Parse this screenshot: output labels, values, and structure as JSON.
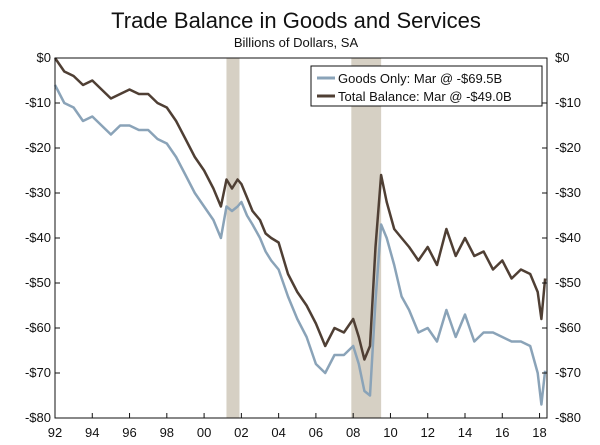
{
  "chart_data": {
    "type": "line",
    "title": "Trade Balance in Goods and Services",
    "subtitle": "Billions of Dollars, SA",
    "xlabel": "",
    "ylabel": "",
    "xlim": [
      1992,
      2018.4
    ],
    "ylim": [
      -80,
      0
    ],
    "y_ticks": [
      0,
      -10,
      -20,
      -30,
      -40,
      -50,
      -60,
      -70,
      -80
    ],
    "y_tick_labels": [
      "$0",
      "-$10",
      "-$20",
      "-$30",
      "-$40",
      "-$50",
      "-$60",
      "-$70",
      "-$80"
    ],
    "x_ticks": [
      1992,
      1994,
      1996,
      1998,
      2000,
      2002,
      2004,
      2006,
      2008,
      2010,
      2012,
      2014,
      2016,
      2018
    ],
    "x_tick_labels": [
      "92",
      "94",
      "96",
      "98",
      "00",
      "02",
      "04",
      "06",
      "08",
      "10",
      "12",
      "14",
      "16",
      "18"
    ],
    "grid": false,
    "legend_position": "top-right",
    "recessions": [
      [
        2001.2,
        2001.9
      ],
      [
        2007.9,
        2009.5
      ]
    ],
    "series": [
      {
        "name": "Goods Only: Mar @ -$69.5B",
        "color": "#8aa3b8",
        "x": [
          1992.0,
          1992.5,
          1993.0,
          1993.5,
          1994.0,
          1994.5,
          1995.0,
          1995.5,
          1996.0,
          1996.5,
          1997.0,
          1997.5,
          1998.0,
          1998.5,
          1999.0,
          1999.5,
          2000.0,
          2000.5,
          2000.9,
          2001.2,
          2001.5,
          2001.8,
          2002.0,
          2002.3,
          2002.6,
          2003.0,
          2003.3,
          2003.6,
          2004.0,
          2004.5,
          2005.0,
          2005.5,
          2006.0,
          2006.5,
          2007.0,
          2007.5,
          2008.0,
          2008.3,
          2008.6,
          2008.9,
          2009.2,
          2009.5,
          2009.8,
          2010.2,
          2010.6,
          2011.0,
          2011.5,
          2012.0,
          2012.5,
          2013.0,
          2013.5,
          2014.0,
          2014.5,
          2015.0,
          2015.5,
          2016.0,
          2016.5,
          2017.0,
          2017.5,
          2017.9,
          2018.1,
          2018.3
        ],
        "values": [
          -6,
          -10,
          -11,
          -14,
          -13,
          -15,
          -17,
          -15,
          -15,
          -16,
          -16,
          -18,
          -19,
          -22,
          -26,
          -30,
          -33,
          -36,
          -40,
          -33,
          -34,
          -33,
          -32,
          -35,
          -37,
          -40,
          -43,
          -45,
          -47,
          -53,
          -58,
          -62,
          -68,
          -70,
          -66,
          -66,
          -64,
          -68,
          -74,
          -75,
          -54,
          -37,
          -40,
          -46,
          -53,
          -56,
          -61,
          -60,
          -63,
          -56,
          -62,
          -57,
          -63,
          -61,
          -61,
          -62,
          -63,
          -63,
          -64,
          -70,
          -77,
          -69.5
        ]
      },
      {
        "name": "Total Balance: Mar @ -$49.0B",
        "color": "#4f3f34",
        "x": [
          1992.0,
          1992.5,
          1993.0,
          1993.5,
          1994.0,
          1994.5,
          1995.0,
          1995.5,
          1996.0,
          1996.5,
          1997.0,
          1997.5,
          1998.0,
          1998.5,
          1999.0,
          1999.5,
          2000.0,
          2000.5,
          2000.9,
          2001.2,
          2001.5,
          2001.8,
          2002.0,
          2002.3,
          2002.6,
          2003.0,
          2003.3,
          2003.6,
          2004.0,
          2004.5,
          2005.0,
          2005.5,
          2006.0,
          2006.5,
          2007.0,
          2007.5,
          2008.0,
          2008.3,
          2008.6,
          2008.9,
          2009.2,
          2009.5,
          2009.8,
          2010.2,
          2010.6,
          2011.0,
          2011.5,
          2012.0,
          2012.5,
          2013.0,
          2013.5,
          2014.0,
          2014.5,
          2015.0,
          2015.5,
          2016.0,
          2016.5,
          2017.0,
          2017.5,
          2017.9,
          2018.1,
          2018.3
        ],
        "values": [
          0,
          -3,
          -4,
          -6,
          -5,
          -7,
          -9,
          -8,
          -7,
          -8,
          -8,
          -10,
          -11,
          -14,
          -18,
          -22,
          -25,
          -29,
          -33,
          -27,
          -29,
          -27,
          -28,
          -31,
          -34,
          -36,
          -39,
          -40,
          -41,
          -48,
          -52,
          -55,
          -59,
          -64,
          -60,
          -61,
          -58,
          -62,
          -67,
          -64,
          -42,
          -26,
          -32,
          -38,
          -40,
          -42,
          -45,
          -42,
          -46,
          -38,
          -44,
          -40,
          -44,
          -43,
          -47,
          -45,
          -49,
          -47,
          -48,
          -52,
          -58,
          -49
        ]
      }
    ]
  }
}
